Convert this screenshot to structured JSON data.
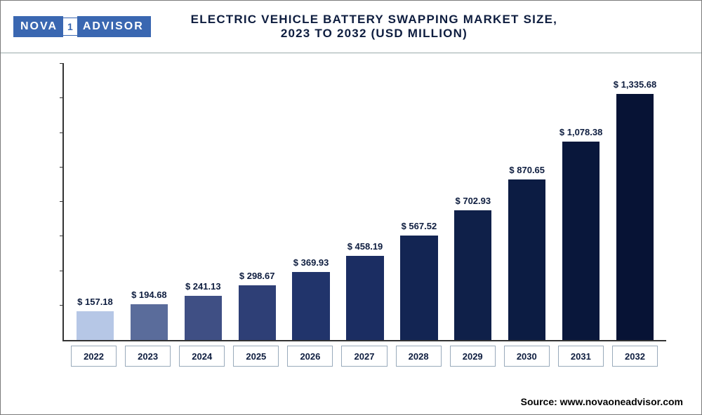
{
  "logo": {
    "part1": "NOVA",
    "mid": "1",
    "part2": "ADVISOR"
  },
  "title": {
    "line1": "ELECTRIC VEHICLE BATTERY SWAPPING MARKET SIZE,",
    "line2": "2023 TO 2032 (USD MILLION)",
    "fontsize_pt": 16
  },
  "source": {
    "label": "Source: www.novaoneadvisor.com",
    "fontsize_pt": 13
  },
  "chart": {
    "type": "bar",
    "categories": [
      "2022",
      "2023",
      "2024",
      "2025",
      "2026",
      "2027",
      "2028",
      "2029",
      "2030",
      "2031",
      "2032"
    ],
    "values": [
      157.18,
      194.68,
      241.13,
      298.67,
      369.93,
      458.19,
      567.52,
      702.93,
      870.65,
      1078.38,
      1335.68
    ],
    "value_labels": [
      "$ 157.18",
      "$ 194.68",
      "$ 241.13",
      "$ 298.67",
      "$ 369.93",
      "$ 458.19",
      "$ 567.52",
      "$ 702.93",
      "$ 870.65",
      "$ 1,078.38",
      "$ 1,335.68"
    ],
    "bar_colors": [
      "#b6c7e6",
      "#5a6c9b",
      "#3f4f84",
      "#2e3f76",
      "#21346b",
      "#1b2d62",
      "#132553",
      "#0f2049",
      "#0c1c43",
      "#09173b",
      "#071335"
    ],
    "bar_width_ratio": 0.82,
    "ylim": [
      0,
      1500
    ],
    "y_tick_count": 8,
    "background_color": "#ffffff",
    "axis_color": "#333333",
    "border_color": "#7a7a7a",
    "label_fontsize_pt": 13,
    "label_color": "#0e1d3f",
    "xaxis_label_fontsize_pt": 13,
    "xaxis_box_border": "#99aabb",
    "label_fontweight": 700
  }
}
